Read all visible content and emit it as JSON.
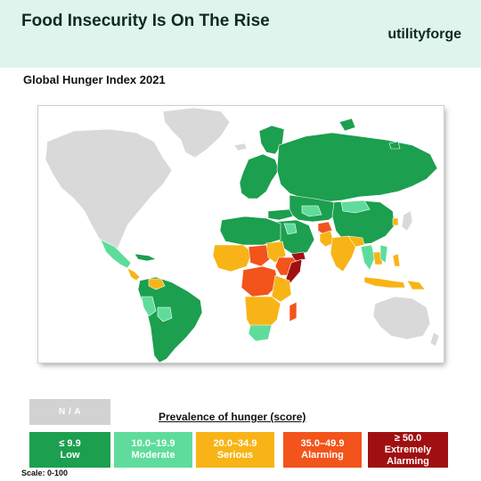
{
  "header": {
    "title": "Food Insecurity Is On The Rise",
    "brand": "utilityforge"
  },
  "subtitle": "Global Hunger Index 2021",
  "legend": {
    "title": "Prevalence of hunger (score)",
    "na_label": "N / A",
    "na_color": "#d2d2d2",
    "categories": [
      {
        "range": "≤ 9.9",
        "label": "Low",
        "color": "#1c9f4f",
        "text_color": "#ffffff"
      },
      {
        "range": "10.0–19.9",
        "label": "Moderate",
        "color": "#5fdc9c",
        "text_color": "#ffffff"
      },
      {
        "range": "20.0–34.9",
        "label": "Serious",
        "color": "#f8b416",
        "text_color": "#ffffff"
      },
      {
        "range": "35.0–49.9",
        "label": "Alarming",
        "color": "#f2541b",
        "text_color": "#ffffff"
      },
      {
        "range": "≥ 50.0",
        "label": "Extremely Alarming",
        "color": "#a01012",
        "text_color": "#ffffff"
      }
    ]
  },
  "scale_note": "Scale: 0-100",
  "map": {
    "type": "choropleth world map",
    "no_data_color": "#d9d9d9",
    "border_color": "#ffffff"
  }
}
